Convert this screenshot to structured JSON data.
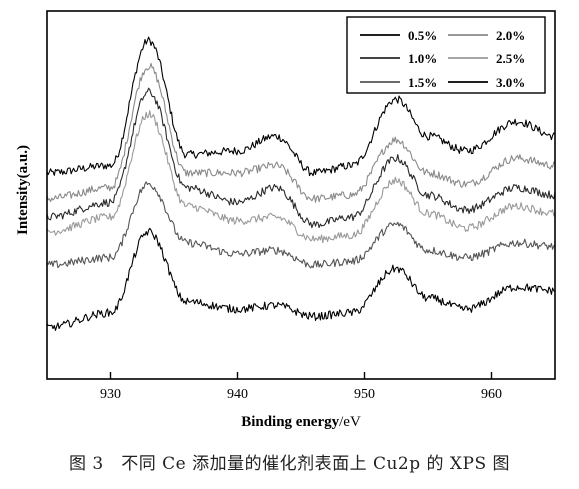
{
  "caption": "图 3　不同 Ce 添加量的催化剂表面上 Cu2p 的 XPS 图",
  "chart_data": {
    "type": "line",
    "xlabel": "Binding energy/eV",
    "ylabel": "Intensity(a.u.)",
    "xlim": [
      925,
      965
    ],
    "xticks": [
      930,
      940,
      950,
      960
    ],
    "y_ticks_shown": false,
    "grid": false,
    "legend_position": "top-right",
    "legend_columns": 2,
    "peaks_eV": [
      932.8,
      942.5,
      952.5,
      962.0
    ],
    "series": [
      {
        "name": "0.5%",
        "color": "#000000",
        "values": [
          {
            "x": 925,
            "y": 0.56
          },
          {
            "x": 930,
            "y": 0.58
          },
          {
            "x": 933,
            "y": 0.92
          },
          {
            "x": 936,
            "y": 0.61
          },
          {
            "x": 940,
            "y": 0.62
          },
          {
            "x": 943,
            "y": 0.66
          },
          {
            "x": 946,
            "y": 0.56
          },
          {
            "x": 949,
            "y": 0.58
          },
          {
            "x": 952.5,
            "y": 0.76
          },
          {
            "x": 955,
            "y": 0.66
          },
          {
            "x": 958,
            "y": 0.62
          },
          {
            "x": 962,
            "y": 0.7
          },
          {
            "x": 965,
            "y": 0.66
          }
        ]
      },
      {
        "name": "2.0%",
        "color": "#8a8a8a",
        "values": [
          {
            "x": 925,
            "y": 0.49
          },
          {
            "x": 930,
            "y": 0.52
          },
          {
            "x": 933,
            "y": 0.85
          },
          {
            "x": 936,
            "y": 0.56
          },
          {
            "x": 940,
            "y": 0.56
          },
          {
            "x": 943,
            "y": 0.58
          },
          {
            "x": 946,
            "y": 0.49
          },
          {
            "x": 949,
            "y": 0.5
          },
          {
            "x": 952.5,
            "y": 0.65
          },
          {
            "x": 955,
            "y": 0.56
          },
          {
            "x": 958,
            "y": 0.53
          },
          {
            "x": 962,
            "y": 0.6
          },
          {
            "x": 965,
            "y": 0.58
          }
        ]
      },
      {
        "name": "1.0%",
        "color": "#2a2a2a",
        "values": [
          {
            "x": 925,
            "y": 0.44
          },
          {
            "x": 930,
            "y": 0.48
          },
          {
            "x": 933,
            "y": 0.78
          },
          {
            "x": 936,
            "y": 0.52
          },
          {
            "x": 940,
            "y": 0.48
          },
          {
            "x": 943,
            "y": 0.52
          },
          {
            "x": 946,
            "y": 0.42
          },
          {
            "x": 949,
            "y": 0.44
          },
          {
            "x": 952.5,
            "y": 0.6
          },
          {
            "x": 955,
            "y": 0.5
          },
          {
            "x": 958,
            "y": 0.46
          },
          {
            "x": 962,
            "y": 0.52
          },
          {
            "x": 965,
            "y": 0.5
          }
        ]
      },
      {
        "name": "2.5%",
        "color": "#9a9a9a",
        "values": [
          {
            "x": 925,
            "y": 0.4
          },
          {
            "x": 930,
            "y": 0.44
          },
          {
            "x": 933,
            "y": 0.72
          },
          {
            "x": 936,
            "y": 0.47
          },
          {
            "x": 940,
            "y": 0.43
          },
          {
            "x": 943,
            "y": 0.44
          },
          {
            "x": 946,
            "y": 0.38
          },
          {
            "x": 949,
            "y": 0.39
          },
          {
            "x": 952.5,
            "y": 0.54
          },
          {
            "x": 955,
            "y": 0.45
          },
          {
            "x": 958,
            "y": 0.41
          },
          {
            "x": 962,
            "y": 0.47
          },
          {
            "x": 965,
            "y": 0.45
          }
        ]
      },
      {
        "name": "1.5%",
        "color": "#555555",
        "values": [
          {
            "x": 925,
            "y": 0.31
          },
          {
            "x": 930,
            "y": 0.33
          },
          {
            "x": 933,
            "y": 0.53
          },
          {
            "x": 936,
            "y": 0.37
          },
          {
            "x": 940,
            "y": 0.34
          },
          {
            "x": 943,
            "y": 0.35
          },
          {
            "x": 946,
            "y": 0.31
          },
          {
            "x": 949,
            "y": 0.32
          },
          {
            "x": 952.5,
            "y": 0.42
          },
          {
            "x": 955,
            "y": 0.35
          },
          {
            "x": 958,
            "y": 0.33
          },
          {
            "x": 962,
            "y": 0.37
          },
          {
            "x": 965,
            "y": 0.36
          }
        ]
      },
      {
        "name": "3.0%",
        "color": "#000000",
        "values": [
          {
            "x": 925,
            "y": 0.14
          },
          {
            "x": 930,
            "y": 0.18
          },
          {
            "x": 933,
            "y": 0.4
          },
          {
            "x": 936,
            "y": 0.21
          },
          {
            "x": 940,
            "y": 0.19
          },
          {
            "x": 943,
            "y": 0.2
          },
          {
            "x": 946,
            "y": 0.17
          },
          {
            "x": 949,
            "y": 0.18
          },
          {
            "x": 952.5,
            "y": 0.3
          },
          {
            "x": 955,
            "y": 0.22
          },
          {
            "x": 958,
            "y": 0.19
          },
          {
            "x": 962,
            "y": 0.25
          },
          {
            "x": 965,
            "y": 0.24
          }
        ]
      }
    ]
  }
}
